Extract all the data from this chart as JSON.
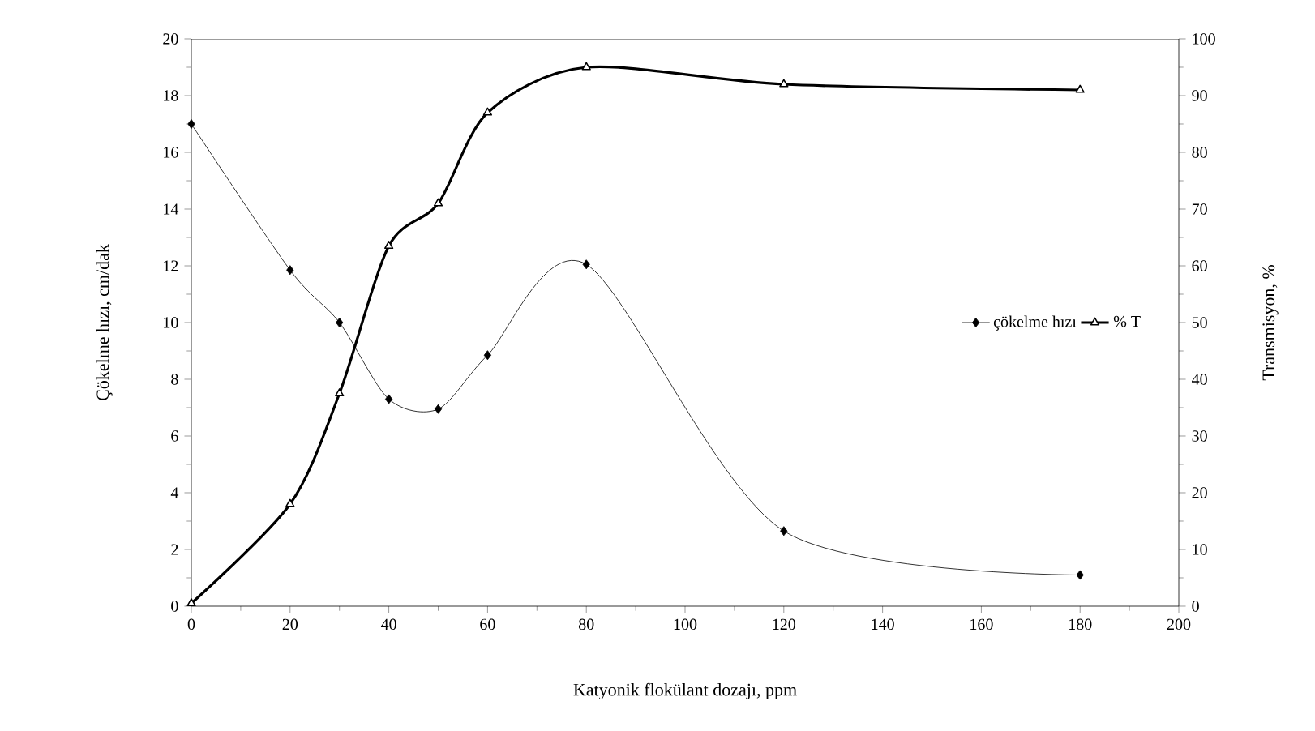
{
  "chart_data": {
    "type": "line",
    "xlabel": "Katyonik flokülant dozajı, ppm",
    "ylabel": "Çökelme hızı, cm/dak",
    "y2label": "Transmisyon, %",
    "xlim": [
      0,
      200
    ],
    "xticks": [
      0,
      20,
      40,
      60,
      80,
      100,
      120,
      140,
      160,
      180,
      200
    ],
    "ylim": [
      0,
      20
    ],
    "yticks": [
      0,
      2,
      4,
      6,
      8,
      10,
      12,
      14,
      16,
      18,
      20
    ],
    "y2lim": [
      0,
      100
    ],
    "y2ticks": [
      0,
      10,
      20,
      30,
      40,
      50,
      60,
      70,
      80,
      90,
      100
    ],
    "legend": "right",
    "series": [
      {
        "name": "çökelme hızı",
        "color": "#000000",
        "marker": "diamond",
        "x": [
          0,
          20,
          30,
          40,
          50,
          60,
          80,
          120,
          180
        ],
        "values": [
          17,
          11.85,
          10,
          7.3,
          6.95,
          8.85,
          12.05,
          2.65,
          1.1
        ]
      },
      {
        "name": "% T",
        "color": "#000000",
        "marker": "triangle",
        "axis": "y2",
        "x": [
          0,
          20,
          30,
          40,
          50,
          60,
          80,
          120,
          180
        ],
        "values": [
          0.5,
          18,
          37.5,
          63.5,
          71,
          87,
          95,
          92,
          91
        ]
      }
    ]
  }
}
